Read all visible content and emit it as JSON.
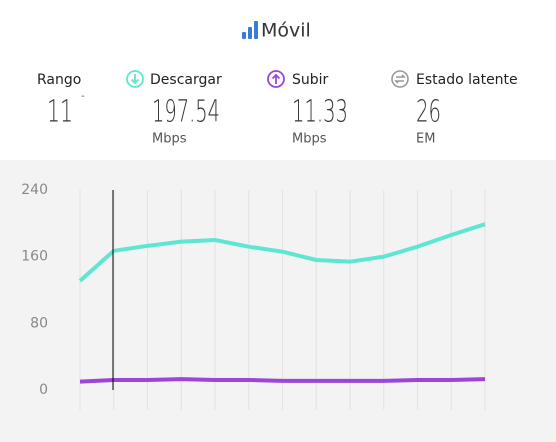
{
  "header": {
    "title": "Móvil"
  },
  "stats": [
    {
      "label": "Rango",
      "value": 11,
      "unit": "-"
    },
    {
      "label": "Descargar",
      "value": 197.54,
      "unit": "Mbps"
    },
    {
      "label": "Subir",
      "value": 11.33,
      "unit": "Mbps"
    },
    {
      "label": "Estado latente",
      "value": 26,
      "unit": "EM"
    }
  ],
  "chart_data": {
    "type": "line",
    "categories": [
      null,
      null,
      null,
      null,
      null,
      null,
      null,
      null,
      null,
      null,
      null,
      null,
      null
    ],
    "series": [
      {
        "color": "#5fe6d1",
        "values": [
          131,
          167,
          173,
          178,
          180,
          172,
          166,
          156,
          154,
          160,
          172,
          186,
          199
        ]
      },
      {
        "color": "#9b45d9",
        "values": [
          10,
          12,
          12,
          13,
          12,
          12,
          11,
          11,
          11,
          11,
          12,
          12,
          13
        ]
      }
    ],
    "ylim": [
      0,
      240
    ],
    "yticks": [
      0,
      80,
      160,
      240
    ],
    "grid": true
  }
}
